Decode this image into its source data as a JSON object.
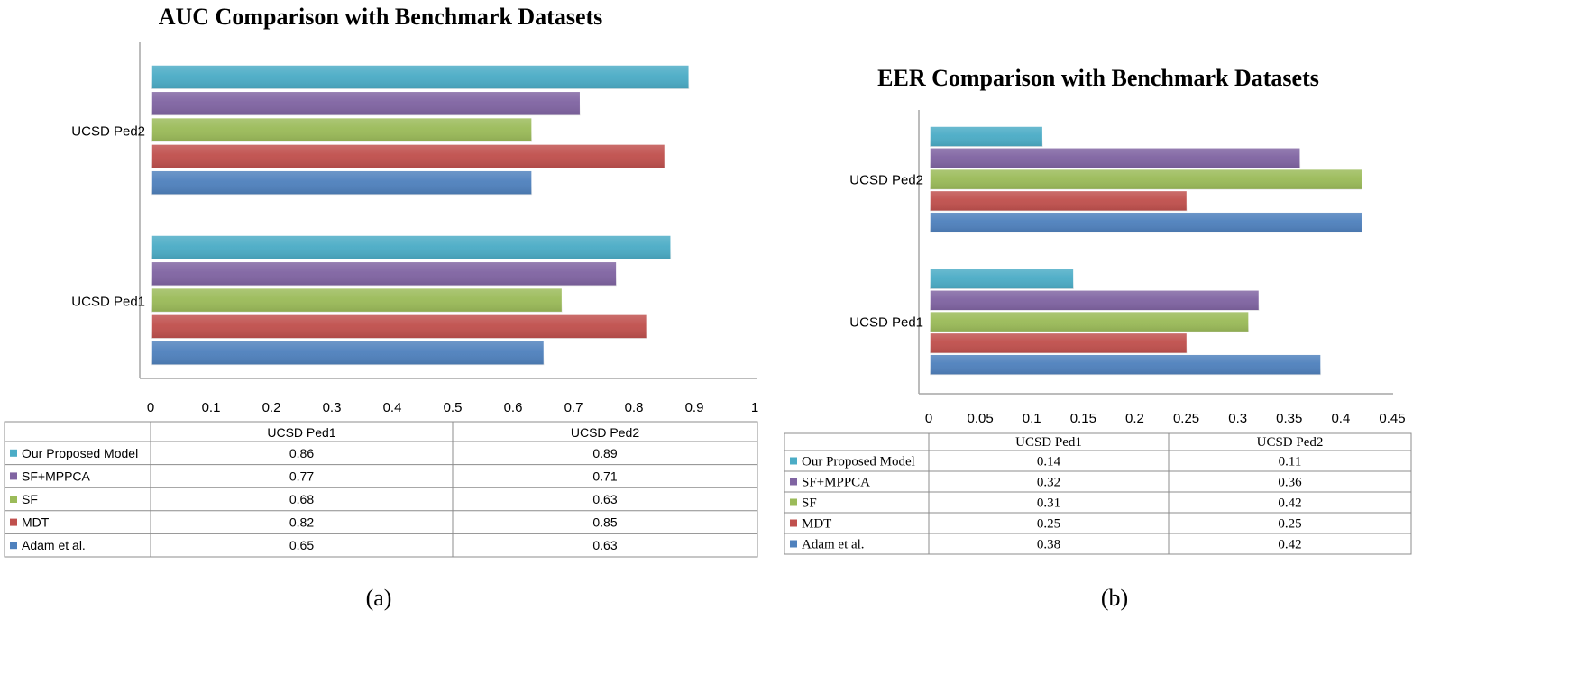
{
  "figure_labels": [
    "(a)",
    "(b)"
  ],
  "colors": {
    "Our Proposed Model": "#4bacc6",
    "SF+MPPCA": "#8064a2",
    "SF": "#9bbb59",
    "MDT": "#c0504d",
    "Adam et al.": "#4f81bd"
  },
  "chart_data": [
    {
      "type": "bar",
      "orientation": "horizontal",
      "title": "AUC Comparison with Benchmark Datasets",
      "categories": [
        "UCSD Ped1",
        "UCSD Ped2"
      ],
      "xlim": [
        0,
        1
      ],
      "xticks": [
        "0",
        "0.1",
        "0.2",
        "0.3",
        "0.4",
        "0.5",
        "0.6",
        "0.7",
        "0.8",
        "0.9",
        "1"
      ],
      "xtick_values": [
        0,
        0.1,
        0.2,
        0.3,
        0.4,
        0.5,
        0.6,
        0.7,
        0.8,
        0.9,
        1
      ],
      "grid": false,
      "legend": "data table below chart",
      "series": [
        {
          "name": "Our Proposed Model",
          "values": [
            0.86,
            0.89
          ],
          "labels": [
            "0.86",
            "0.89"
          ]
        },
        {
          "name": "SF+MPPCA",
          "values": [
            0.77,
            0.71
          ],
          "labels": [
            "0.77",
            "0.71"
          ]
        },
        {
          "name": "SF",
          "values": [
            0.68,
            0.63
          ],
          "labels": [
            "0.68",
            "0.63"
          ]
        },
        {
          "name": "MDT",
          "values": [
            0.82,
            0.85
          ],
          "labels": [
            "0.82",
            "0.85"
          ]
        },
        {
          "name": "Adam et al.",
          "values": [
            0.65,
            0.63
          ],
          "labels": [
            "0.65",
            "0.63"
          ]
        }
      ]
    },
    {
      "type": "bar",
      "orientation": "horizontal",
      "title": "EER Comparison with Benchmark Datasets",
      "categories": [
        "UCSD Ped1",
        "UCSD Ped2"
      ],
      "xlim": [
        0,
        0.45
      ],
      "xticks": [
        "0",
        "0.05",
        "0.1",
        "0.15",
        "0.2",
        "0.25",
        "0.3",
        "0.35",
        "0.4",
        "0.45"
      ],
      "xtick_values": [
        0,
        0.05,
        0.1,
        0.15,
        0.2,
        0.25,
        0.3,
        0.35,
        0.4,
        0.45
      ],
      "grid": false,
      "legend": "data table below chart",
      "series": [
        {
          "name": "Our Proposed Model",
          "values": [
            0.14,
            0.11
          ],
          "labels": [
            "0.14",
            "0.11"
          ]
        },
        {
          "name": "SF+MPPCA",
          "values": [
            0.32,
            0.36
          ],
          "labels": [
            "0.32",
            "0.36"
          ]
        },
        {
          "name": "SF",
          "values": [
            0.31,
            0.42
          ],
          "labels": [
            "0.31",
            "0.42"
          ]
        },
        {
          "name": "MDT",
          "values": [
            0.25,
            0.25
          ],
          "labels": [
            "0.25",
            "0.25"
          ]
        },
        {
          "name": "Adam et al.",
          "values": [
            0.38,
            0.42
          ],
          "labels": [
            "0.38",
            "0.42"
          ]
        }
      ]
    }
  ]
}
